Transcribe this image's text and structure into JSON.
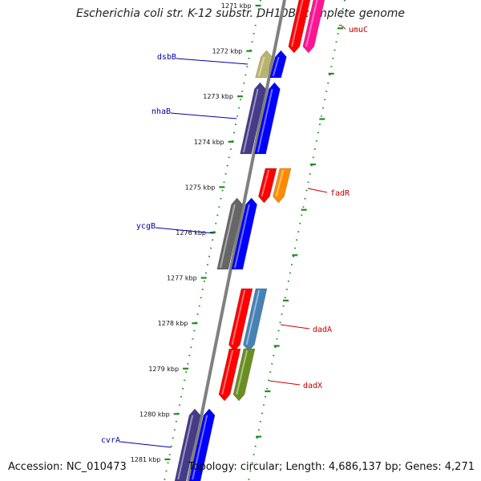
{
  "header": {
    "title": "Escherichia coli str. K-12 substr. DH10B, complete genome"
  },
  "footer": {
    "accession": "Accession: NC_010473",
    "topology": "Topology: circular; Length: 4,686,137 bp; Genes: 4,271"
  },
  "ticks": [
    "1271 kbp",
    "1272 kbp",
    "1273 kbp",
    "1274 kbp",
    "1275 kbp",
    "1276 kbp",
    "1277 kbp",
    "1278 kbp",
    "1279 kbp",
    "1280 kbp",
    "1281 kbp"
  ],
  "genes": [
    {
      "name": "umuC",
      "strand": "forward",
      "colors": [
        "#ff0000",
        "#ff1493"
      ]
    },
    {
      "name": "dsbB",
      "strand": "reverse",
      "colors": [
        "#b8b46e",
        "#0000ff"
      ]
    },
    {
      "name": "nhaB",
      "strand": "reverse",
      "colors": [
        "#443c88",
        "#0000ff"
      ]
    },
    {
      "name": "fadR",
      "strand": "forward",
      "colors": [
        "#ff0000",
        "#ff8c00"
      ]
    },
    {
      "name": "ycgB",
      "strand": "reverse",
      "colors": [
        "#666666",
        "#0000ff"
      ]
    },
    {
      "name": "dadA",
      "strand": "forward",
      "colors": [
        "#ff0000",
        "#4682b4"
      ]
    },
    {
      "name": "dadX",
      "strand": "forward",
      "colors": [
        "#ff0000",
        "#6b8e23"
      ]
    },
    {
      "name": "cvrA",
      "strand": "reverse",
      "colors": [
        "#443c88",
        "#0000ff"
      ]
    }
  ],
  "colors": {
    "forward_label": "#cc0000",
    "reverse_label": "#0000aa",
    "backbone": "#808080",
    "tick": "#228b22"
  }
}
